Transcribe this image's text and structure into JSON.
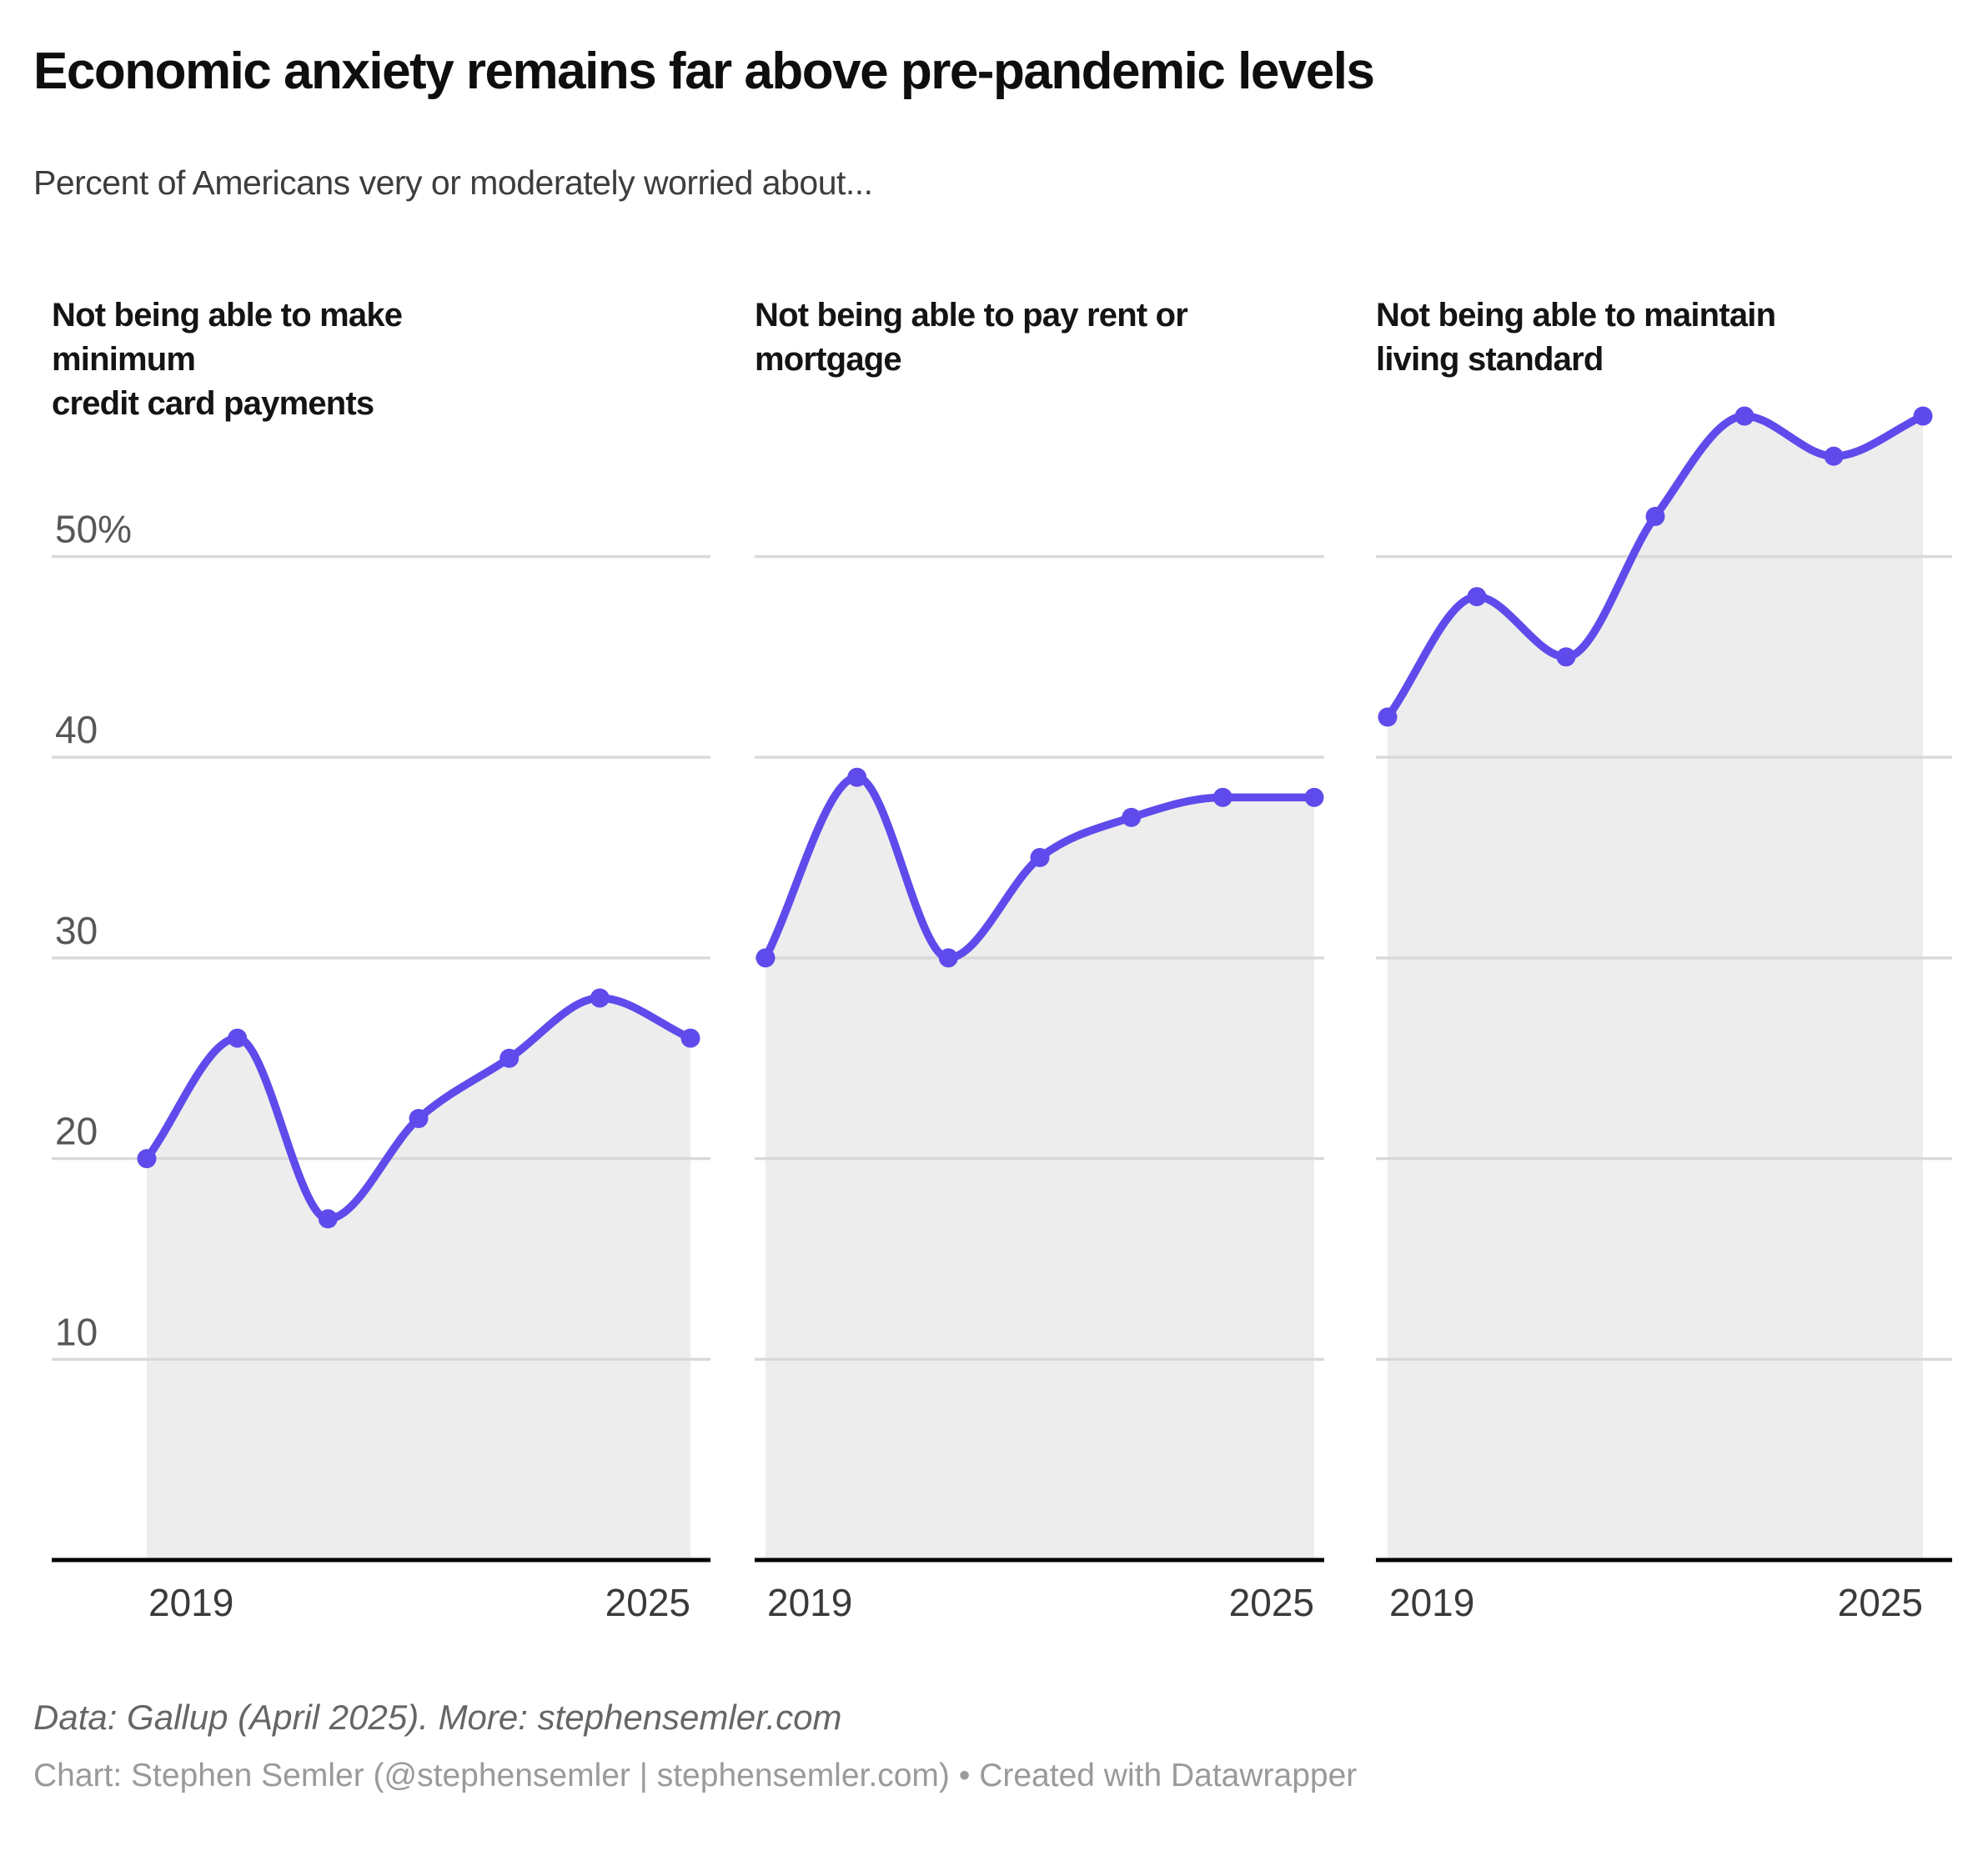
{
  "header": {
    "title": "Economic anxiety remains far above pre-pandemic levels",
    "subtitle": "Percent of Americans very or moderately worried about..."
  },
  "chart_data": [
    {
      "type": "area",
      "title": "Not being able to make minimum credit card payments",
      "title_lines": [
        "Not being able to make minimum",
        "credit card payments"
      ],
      "x": [
        2019,
        2020,
        2021,
        2022,
        2023,
        2024,
        2025
      ],
      "values": [
        20,
        26,
        17,
        22,
        25,
        28,
        26
      ],
      "x_tick_labels": [
        "2019",
        "2025"
      ],
      "ylim": [
        0,
        60
      ],
      "grid": true,
      "legend": "none"
    },
    {
      "type": "area",
      "title": "Not being able to pay rent or mortgage",
      "title_lines": [
        "Not being able to pay rent or",
        "mortgage"
      ],
      "x": [
        2019,
        2020,
        2021,
        2022,
        2023,
        2024,
        2025
      ],
      "values": [
        30,
        39,
        30,
        35,
        37,
        38,
        38
      ],
      "x_tick_labels": [
        "2019",
        "2025"
      ],
      "ylim": [
        0,
        60
      ],
      "grid": true,
      "legend": "none"
    },
    {
      "type": "area",
      "title": "Not being able to maintain living standard",
      "title_lines": [
        "Not being able to maintain",
        "living standard"
      ],
      "x": [
        2019,
        2020,
        2021,
        2022,
        2023,
        2024,
        2025
      ],
      "values": [
        42,
        48,
        45,
        52,
        57,
        55,
        57
      ],
      "x_tick_labels": [
        "2019",
        "2025"
      ],
      "ylim": [
        0,
        60
      ],
      "grid": true,
      "legend": "none"
    }
  ],
  "y_axis": {
    "ticks": [
      {
        "value": 50,
        "label": "50%"
      },
      {
        "value": 40,
        "label": "40"
      },
      {
        "value": 30,
        "label": "30"
      },
      {
        "value": 20,
        "label": "20"
      },
      {
        "value": 10,
        "label": "10"
      }
    ],
    "labels_shown_on_first_panel_only": true
  },
  "colors": {
    "line": "#5F4BEB",
    "dot": "#5F4BEB",
    "area_fill": "#ededed",
    "gridline": "#d9d9d9",
    "axis_baseline": "#000000"
  },
  "footer": {
    "source": "Data: Gallup (April 2025). More: stephensemler.com",
    "byline": "Chart: Stephen Semler (@stephensemler | stephensemler.com) • Created with Datawrapper"
  }
}
